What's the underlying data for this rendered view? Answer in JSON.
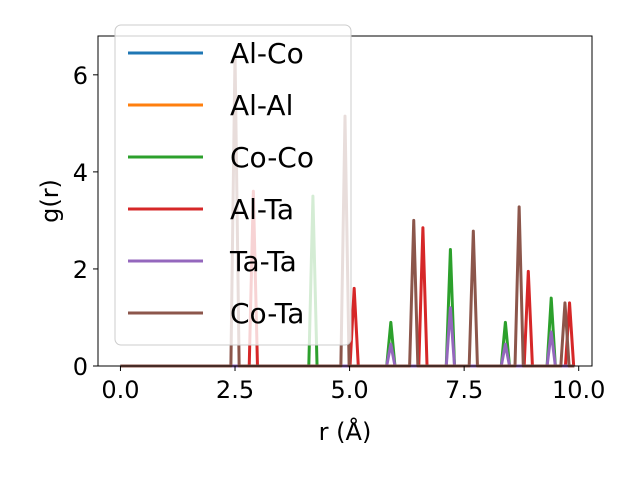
{
  "chart_data": {
    "type": "line",
    "xlabel": "r (Å)",
    "ylabel": "g(r)",
    "xlim": [
      -0.49,
      10.29
    ],
    "ylim": [
      0,
      6.8
    ],
    "x_ticks": [
      0.0,
      2.5,
      5.0,
      7.5,
      10.0
    ],
    "x_tick_labels": [
      "0.0",
      "2.5",
      "5.0",
      "7.5",
      "10.0"
    ],
    "y_ticks": [
      0,
      2,
      4,
      6
    ],
    "y_tick_labels": [
      "0",
      "2",
      "4",
      "6"
    ],
    "legend_position": "upper-left",
    "series": [
      {
        "name": "Al-Co",
        "color": "#1f77b4",
        "peaks": []
      },
      {
        "name": "Al-Al",
        "color": "#ff7f0e",
        "peaks": []
      },
      {
        "name": "Co-Co",
        "color": "#2ca02c",
        "peaks": [
          [
            4.2,
            3.5
          ],
          [
            5.9,
            0.9
          ],
          [
            7.2,
            2.4
          ],
          [
            8.4,
            0.9
          ],
          [
            9.4,
            1.4
          ]
        ]
      },
      {
        "name": "Al-Ta",
        "color": "#d62728",
        "peaks": [
          [
            2.9,
            3.6
          ],
          [
            5.1,
            1.6
          ],
          [
            6.6,
            2.85
          ],
          [
            8.9,
            1.95
          ],
          [
            9.8,
            1.3
          ]
        ]
      },
      {
        "name": "Ta-Ta",
        "color": "#9467bd",
        "peaks": [
          [
            5.9,
            0.45
          ],
          [
            7.2,
            1.2
          ],
          [
            8.4,
            0.45
          ],
          [
            9.4,
            0.7
          ]
        ]
      },
      {
        "name": "Co-Ta",
        "color": "#8c564b",
        "peaks": [
          [
            2.5,
            6.45
          ],
          [
            4.9,
            5.15
          ],
          [
            6.4,
            3.0
          ],
          [
            7.7,
            2.78
          ],
          [
            8.7,
            3.28
          ],
          [
            9.7,
            1.3
          ]
        ]
      }
    ]
  }
}
